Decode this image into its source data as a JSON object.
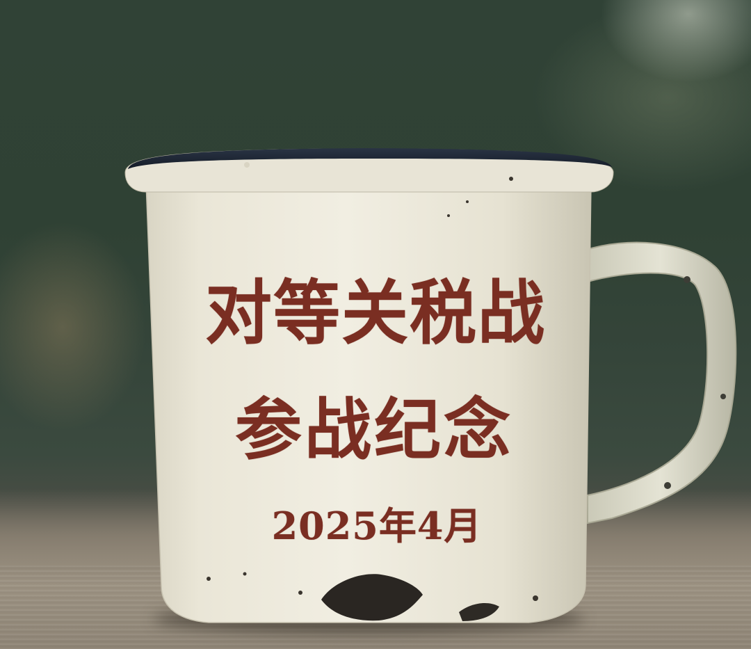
{
  "mug": {
    "inscription_line1": "对等关税战",
    "inscription_line2": "参战纪念",
    "inscription_date": "2025年4月"
  },
  "colors": {
    "text": "#7a2e22",
    "enamel": "#ece8da",
    "rim": "#1e2a3a"
  }
}
